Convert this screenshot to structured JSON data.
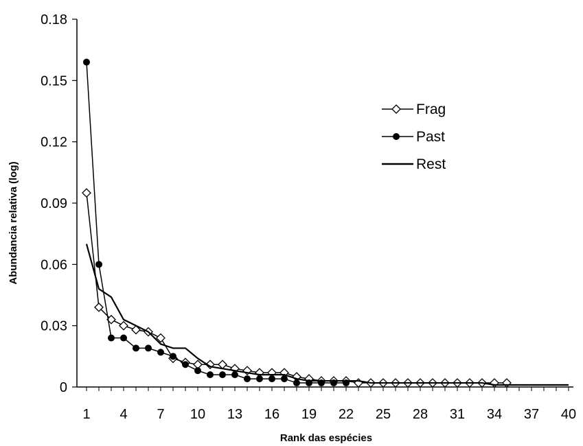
{
  "chart_data": {
    "type": "line",
    "title": "",
    "xlabel": "Rank das espécies",
    "ylabel": "Abundancia relativa (log)",
    "xlim": [
      1,
      40
    ],
    "ylim": [
      0,
      0.18
    ],
    "x_ticks": [
      1,
      4,
      7,
      10,
      13,
      16,
      19,
      22,
      25,
      28,
      31,
      34,
      37,
      40
    ],
    "y_ticks": [
      0,
      0.03,
      0.06,
      0.09,
      0.12,
      0.15,
      0.18
    ],
    "y_tick_labels": [
      "0",
      "0.03",
      "0.06",
      "0.09",
      "0.12",
      "0.15",
      "0.18"
    ],
    "grid": false,
    "legend_position": "upper-right",
    "series": [
      {
        "name": "Frag",
        "marker": "open-diamond",
        "color": "#000000",
        "x": [
          1,
          2,
          3,
          4,
          5,
          6,
          7,
          8,
          9,
          10,
          11,
          12,
          13,
          14,
          15,
          16,
          17,
          18,
          19,
          20,
          21,
          22,
          23,
          24,
          25,
          26,
          27,
          28,
          29,
          30,
          31,
          32,
          33,
          34,
          35
        ],
        "y": [
          0.095,
          0.039,
          0.033,
          0.03,
          0.028,
          0.027,
          0.024,
          0.014,
          0.012,
          0.011,
          0.011,
          0.011,
          0.009,
          0.008,
          0.007,
          0.007,
          0.007,
          0.005,
          0.004,
          0.003,
          0.003,
          0.003,
          0.002,
          0.002,
          0.002,
          0.002,
          0.002,
          0.002,
          0.002,
          0.002,
          0.002,
          0.002,
          0.002,
          0.002,
          0.002
        ]
      },
      {
        "name": "Past",
        "marker": "filled-circle",
        "color": "#000000",
        "x": [
          1,
          2,
          3,
          4,
          5,
          6,
          7,
          8,
          9,
          10,
          11,
          12,
          13,
          14,
          15,
          16,
          17,
          18,
          19,
          20,
          21,
          22
        ],
        "y": [
          0.159,
          0.06,
          0.024,
          0.024,
          0.019,
          0.019,
          0.017,
          0.015,
          0.011,
          0.008,
          0.006,
          0.006,
          0.006,
          0.004,
          0.004,
          0.004,
          0.004,
          0.002,
          0.002,
          0.002,
          0.002,
          0.002
        ]
      },
      {
        "name": "Rest",
        "marker": "none",
        "color": "#000000",
        "x": [
          1,
          2,
          3,
          4,
          5,
          6,
          7,
          8,
          9,
          10,
          11,
          12,
          13,
          14,
          15,
          16,
          17,
          18,
          19,
          20,
          21,
          22,
          23,
          24,
          25,
          26,
          27,
          28,
          29,
          30,
          31,
          32,
          33,
          34,
          35,
          36,
          37,
          38,
          39,
          40
        ],
        "y": [
          0.07,
          0.048,
          0.044,
          0.033,
          0.03,
          0.027,
          0.021,
          0.019,
          0.019,
          0.014,
          0.01,
          0.009,
          0.008,
          0.007,
          0.006,
          0.006,
          0.006,
          0.004,
          0.003,
          0.003,
          0.003,
          0.003,
          0.003,
          0.002,
          0.002,
          0.002,
          0.002,
          0.002,
          0.002,
          0.002,
          0.002,
          0.002,
          0.002,
          0.001,
          0.001,
          0.001,
          0.001,
          0.001,
          0.001,
          0.001
        ]
      }
    ]
  }
}
